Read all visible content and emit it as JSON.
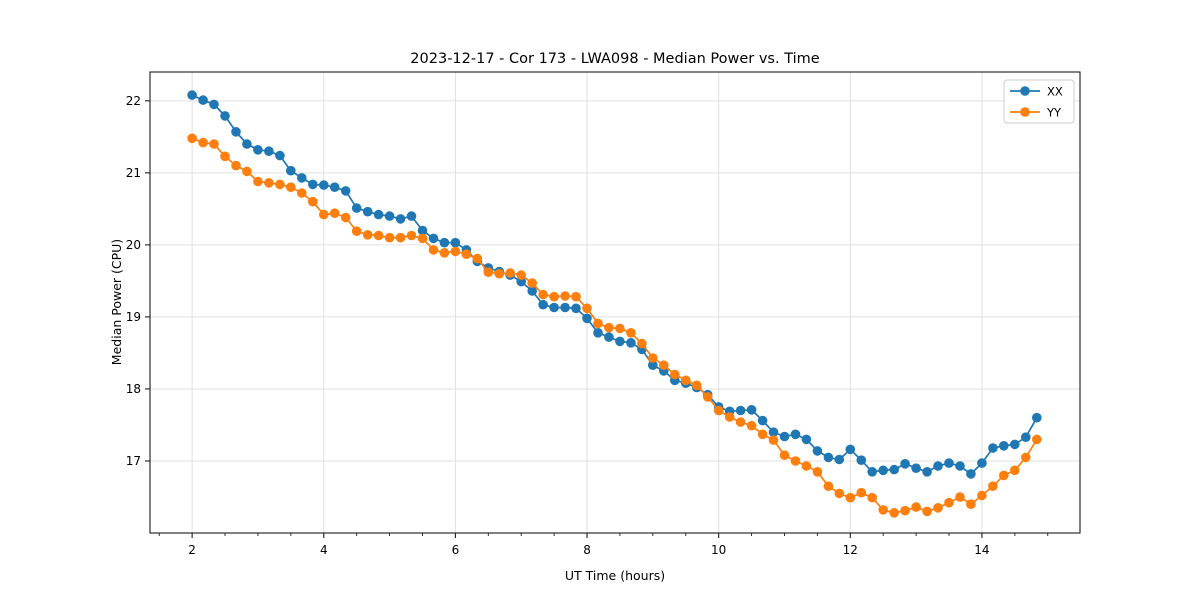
{
  "figure": {
    "background": "#ffffff"
  },
  "chart_data": {
    "type": "line",
    "title": "2023-12-17 - Cor 173 - LWA098 - Median Power vs. Time",
    "xlabel": "UT Time (hours)",
    "ylabel": "Median Power (CPU)",
    "xlim": [
      1.36,
      15.49
    ],
    "ylim": [
      16.0,
      22.4
    ],
    "x_major_ticks": [
      2,
      4,
      6,
      8,
      10,
      12,
      14
    ],
    "x_minor_tick_step": 0.5,
    "y_major_ticks": [
      17,
      18,
      19,
      20,
      21,
      22
    ],
    "grid": true,
    "grid_color": "#e0e0e0",
    "spine_color": "#1a1a1a",
    "legend_position": "upper right",
    "marker": "o",
    "x": [
      2,
      2.167,
      2.333,
      2.5,
      2.667,
      2.833,
      3,
      3.167,
      3.333,
      3.5,
      3.667,
      3.833,
      4,
      4.167,
      4.333,
      4.5,
      4.667,
      4.833,
      5,
      5.167,
      5.333,
      5.5,
      5.667,
      5.833,
      6,
      6.167,
      6.333,
      6.5,
      6.667,
      6.833,
      7,
      7.167,
      7.333,
      7.5,
      7.667,
      7.833,
      8,
      8.167,
      8.333,
      8.5,
      8.667,
      8.833,
      9,
      9.167,
      9.333,
      9.5,
      9.667,
      9.833,
      10,
      10.167,
      10.333,
      10.5,
      10.667,
      10.833,
      11,
      11.167,
      11.333,
      11.5,
      11.667,
      11.833,
      12,
      12.167,
      12.333,
      12.5,
      12.667,
      12.833,
      13,
      13.167,
      13.333,
      13.5,
      13.667,
      13.833,
      14,
      14.167,
      14.333,
      14.5,
      14.667,
      14.833
    ],
    "series": [
      {
        "name": "XX",
        "color": "#1f77b4",
        "values": [
          22.08,
          22.01,
          21.95,
          21.79,
          21.57,
          21.4,
          21.32,
          21.3,
          21.24,
          21.03,
          20.93,
          20.84,
          20.83,
          20.8,
          20.75,
          20.51,
          20.46,
          20.42,
          20.4,
          20.36,
          20.4,
          20.2,
          20.09,
          20.03,
          20.03,
          19.93,
          19.77,
          19.68,
          19.63,
          19.58,
          19.49,
          19.36,
          19.17,
          19.13,
          19.13,
          19.12,
          18.98,
          18.78,
          18.72,
          18.66,
          18.64,
          18.55,
          18.33,
          18.25,
          18.12,
          18.08,
          18.02,
          17.92,
          17.75,
          17.69,
          17.7,
          17.71,
          17.56,
          17.4,
          17.34,
          17.37,
          17.3,
          17.14,
          17.05,
          17.02,
          17.16,
          17.01,
          16.85,
          16.87,
          16.88,
          16.96,
          16.9,
          16.85,
          16.93,
          16.97,
          16.93,
          16.82,
          16.97,
          17.18,
          17.21,
          17.23,
          17.33,
          17.6
        ]
      },
      {
        "name": "YY",
        "color": "#ff7f0e",
        "values": [
          21.48,
          21.42,
          21.4,
          21.23,
          21.1,
          21.02,
          20.88,
          20.86,
          20.84,
          20.8,
          20.72,
          20.6,
          20.42,
          20.44,
          20.38,
          20.19,
          20.14,
          20.13,
          20.1,
          20.1,
          20.13,
          20.09,
          19.93,
          19.89,
          19.91,
          19.87,
          19.81,
          19.62,
          19.6,
          19.61,
          19.58,
          19.47,
          19.31,
          19.28,
          19.29,
          19.28,
          19.12,
          18.91,
          18.85,
          18.84,
          18.78,
          18.63,
          18.43,
          18.33,
          18.2,
          18.12,
          18.05,
          17.89,
          17.7,
          17.61,
          17.54,
          17.49,
          17.37,
          17.29,
          17.08,
          17.0,
          16.93,
          16.85,
          16.65,
          16.55,
          16.49,
          16.56,
          16.49,
          16.32,
          16.28,
          16.31,
          16.36,
          16.3,
          16.35,
          16.42,
          16.5,
          16.4,
          16.52,
          16.65,
          16.8,
          16.87,
          17.05,
          17.3
        ]
      }
    ]
  }
}
